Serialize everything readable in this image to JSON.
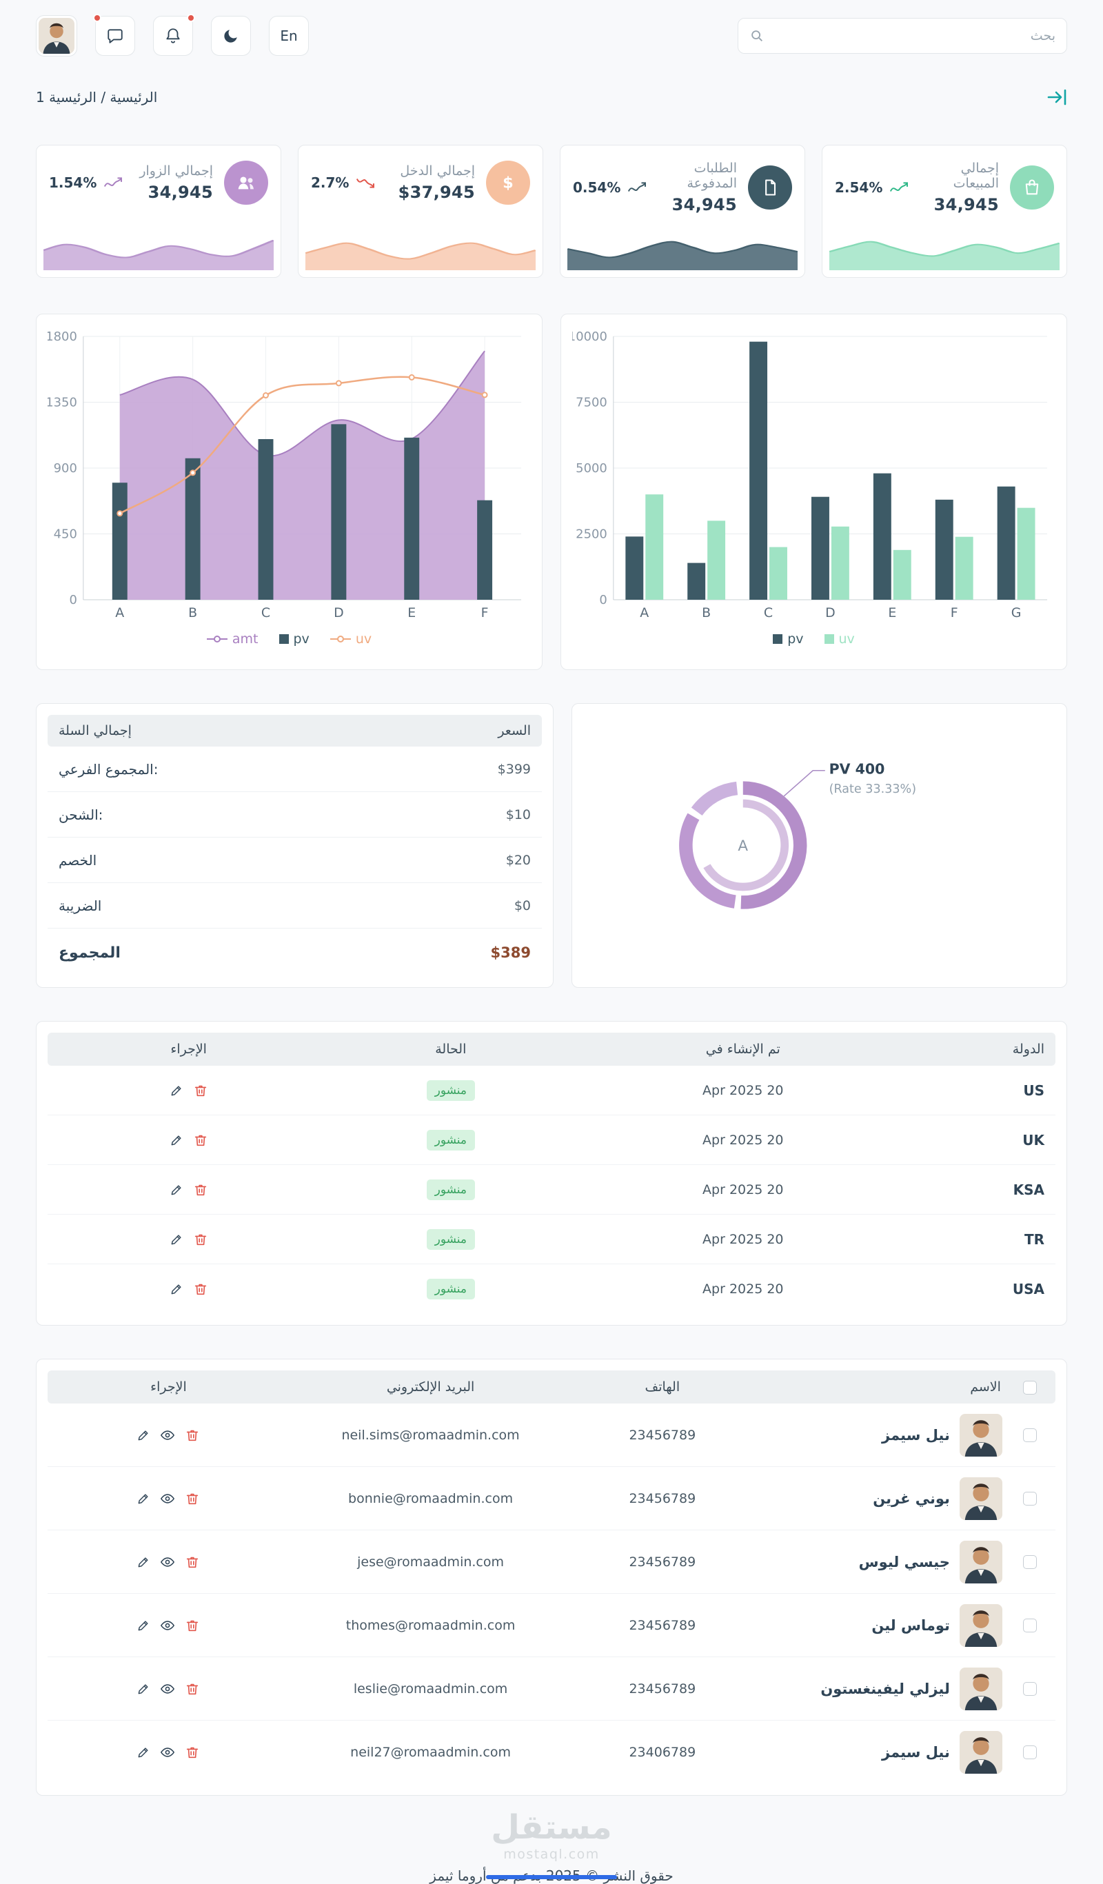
{
  "header": {
    "search_placeholder": "بحث",
    "lang_button": "En"
  },
  "breadcrumb": {
    "text": "الرئيسية / الرئيسية 1"
  },
  "colors": {
    "accent_teal": "#12a5a5",
    "badge_bg": "#d7f3e0",
    "badge_text": "#37a25f",
    "danger": "#e2574c",
    "total_price": "#8d4a2f"
  },
  "stat_cards": [
    {
      "title": "إجمالي الزوار",
      "value": "34,945",
      "percent": "1.54%",
      "accent": "#bb93cf",
      "trend": "wave-up",
      "trend_color": "#a87fc0",
      "spark": [
        26,
        34,
        30,
        20,
        16,
        24,
        32,
        28,
        20,
        18,
        28,
        40
      ],
      "spark_fill": "#cdb3dc",
      "spark_stroke": "#b795cc"
    },
    {
      "title": "إجمالي الدخل",
      "value": "$37,945",
      "percent": "2.7%",
      "accent": "#f6c09f",
      "trend": "down",
      "trend_color": "#e2574c",
      "spark": [
        22,
        30,
        36,
        28,
        18,
        14,
        22,
        32,
        36,
        28,
        20,
        26
      ],
      "spark_fill": "#f9cfb8",
      "spark_stroke": "#f1b392"
    },
    {
      "title": "الطلبات المدفوعة",
      "value": "34,945",
      "percent": "0.54%",
      "accent": "#3d5a66",
      "trend": "wave-up",
      "trend_color": "#3d5a66",
      "spark": [
        28,
        22,
        16,
        22,
        32,
        38,
        30,
        22,
        26,
        34,
        30,
        24
      ],
      "spark_fill": "#5a7380",
      "spark_stroke": "#44606d"
    },
    {
      "title": "إجمالي المبيعات",
      "value": "34,945",
      "percent": "2.54%",
      "accent": "#8fdcba",
      "trend": "up",
      "trend_color": "#2eb888",
      "spark": [
        24,
        32,
        38,
        30,
        22,
        18,
        26,
        34,
        30,
        22,
        28,
        36
      ],
      "spark_fill": "#abe7cc",
      "spark_stroke": "#86dab6"
    }
  ],
  "chart_data": [
    {
      "id": "composed",
      "type": "line",
      "title": "",
      "categories": [
        "A",
        "B",
        "C",
        "D",
        "E",
        "F"
      ],
      "ylim": [
        0,
        1800
      ],
      "yticks": [
        0,
        450,
        900,
        1350,
        1800
      ],
      "grid": true,
      "legend_position": "bottom",
      "series": [
        {
          "name": "amt",
          "kind": "area",
          "color": "#a87fc0",
          "fill": "#c7a6d7",
          "values": [
            1400,
            1506,
            989,
            1228,
            1100,
            1700
          ]
        },
        {
          "name": "pv",
          "kind": "bar",
          "color": "#3d5a66",
          "values": [
            800,
            967,
            1098,
            1200,
            1108,
            680
          ]
        },
        {
          "name": "uv",
          "kind": "line",
          "color": "#f0aa80",
          "values": [
            590,
            868,
            1397,
            1480,
            1520,
            1400
          ]
        }
      ]
    },
    {
      "id": "grouped",
      "type": "bar",
      "title": "",
      "categories": [
        "A",
        "B",
        "C",
        "D",
        "E",
        "F",
        "G"
      ],
      "ylim": [
        0,
        10000
      ],
      "yticks": [
        0,
        2500,
        5000,
        7500,
        10000
      ],
      "grid": true,
      "legend_position": "bottom",
      "series": [
        {
          "name": "pv",
          "color": "#3d5a66",
          "values": [
            2400,
            1398,
            9800,
            3908,
            4800,
            3800,
            4300
          ]
        },
        {
          "name": "uv",
          "color": "#9fe3c4",
          "values": [
            4000,
            3000,
            2000,
            2780,
            1890,
            2390,
            3490
          ]
        }
      ]
    },
    {
      "id": "donut",
      "type": "pie",
      "center_label": "A",
      "annotation_line1": "PV 400",
      "annotation_line2": "(Rate 33.33%)",
      "slices": [
        {
          "name": "A",
          "value": 400,
          "rate": "33.33%"
        }
      ],
      "colors": [
        "#b48ec9",
        "#bd99d1",
        "#cbb2de"
      ]
    }
  ],
  "cart": {
    "title": "إجمالي السلة",
    "price_header": "السعر",
    "rows": [
      {
        "label": "المجموع الفرعي:",
        "value": "$399"
      },
      {
        "label": "الشحن:",
        "value": "$10"
      },
      {
        "label": "الخصم",
        "value": "$20"
      },
      {
        "label": "الضريبة",
        "value": "$0"
      }
    ],
    "total_label": "المجموع",
    "total_value": "$389"
  },
  "countries_table": {
    "headers": [
      "الدولة",
      "تم الإنشاء في",
      "الحالة",
      "الإجراء"
    ],
    "status_label": "منشور",
    "rows": [
      {
        "country": "US",
        "created": "20 Apr 2025"
      },
      {
        "country": "UK",
        "created": "20 Apr 2025"
      },
      {
        "country": "KSA",
        "created": "20 Apr 2025"
      },
      {
        "country": "TR",
        "created": "20 Apr 2025"
      },
      {
        "country": "USA",
        "created": "20 Apr 2025"
      }
    ]
  },
  "users_table": {
    "headers": [
      "الاسم",
      "الهاتف",
      "البريد الإلكتروني",
      "الإجراء"
    ],
    "rows": [
      {
        "name": "نيل سيمز",
        "phone": "23456789",
        "email": "neil.sims@romaadmin.com"
      },
      {
        "name": "بوني غرين",
        "phone": "23456789",
        "email": "bonnie@romaadmin.com"
      },
      {
        "name": "جيسي ليوس",
        "phone": "23456789",
        "email": "jese@romaadmin.com"
      },
      {
        "name": "توماس لين",
        "phone": "23456789",
        "email": "thomes@romaadmin.com"
      },
      {
        "name": "ليزلي ليفينغستون",
        "phone": "23456789",
        "email": "leslie@romaadmin.com"
      },
      {
        "name": "نيل سيمز",
        "phone": "23406789",
        "email": "neil27@romaadmin.com"
      }
    ]
  },
  "watermark": {
    "title": "مستقل",
    "subtitle": "mostaql.com"
  },
  "footer": {
    "text": "حقوق النشر © 2025 بدعم من أروما ثيمز"
  }
}
